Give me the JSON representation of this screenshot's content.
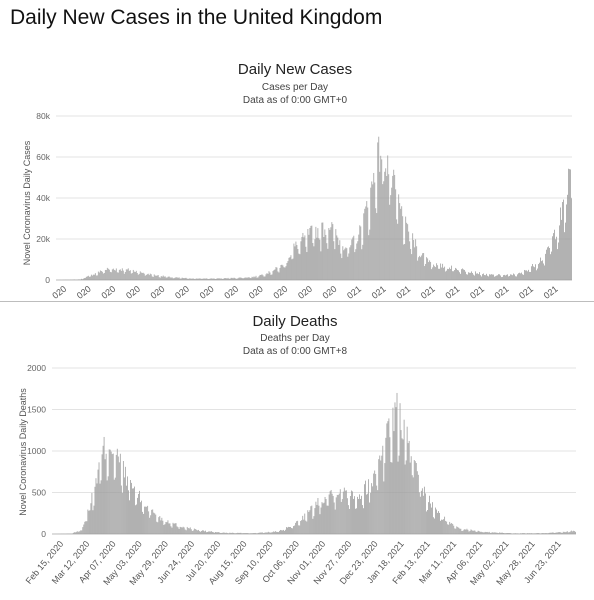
{
  "page": {
    "title": "Daily New Cases in the United Kingdom"
  },
  "colors": {
    "bar": "#9d9d9d",
    "grid": "#e3e3e3",
    "text": "#222222"
  },
  "chart_data": [
    {
      "type": "bar",
      "title": "Daily New Cases",
      "subtitle_1": "Cases per Day",
      "subtitle_2": "Data as of 0:00 GMT+0",
      "xlabel": "",
      "ylabel": "Novel Coronavirus Daily Cases",
      "ylim": [
        0,
        80000
      ],
      "yticks": [
        0,
        20000,
        40000,
        60000,
        80000
      ],
      "ytick_labels": [
        "0",
        "20k",
        "40k",
        "60k",
        "80k"
      ],
      "xtick_labels": [
        "020",
        "020",
        "020",
        "020",
        "020",
        "020",
        "020",
        "020",
        "020",
        "020",
        "020",
        "020",
        "021",
        "021",
        "021",
        "021",
        "021",
        "021",
        "021",
        "021",
        "021"
      ],
      "grid": true,
      "x_start": "2020-02-15",
      "x_end": "2021-07-15",
      "keypoints": [
        [
          "2020-02-15",
          0
        ],
        [
          "2020-03-10",
          300
        ],
        [
          "2020-03-25",
          3000
        ],
        [
          "2020-04-05",
          5000
        ],
        [
          "2020-04-15",
          5200
        ],
        [
          "2020-05-01",
          4500
        ],
        [
          "2020-05-20",
          2500
        ],
        [
          "2020-06-10",
          1200
        ],
        [
          "2020-07-01",
          700
        ],
        [
          "2020-07-25",
          700
        ],
        [
          "2020-08-15",
          1000
        ],
        [
          "2020-09-01",
          1500
        ],
        [
          "2020-09-15",
          3500
        ],
        [
          "2020-09-30",
          7000
        ],
        [
          "2020-10-10",
          15000
        ],
        [
          "2020-10-25",
          21000
        ],
        [
          "2020-11-01",
          23000
        ],
        [
          "2020-11-10",
          24000
        ],
        [
          "2020-11-15",
          26000
        ],
        [
          "2020-11-25",
          18000
        ],
        [
          "2020-12-05",
          15000
        ],
        [
          "2020-12-15",
          22000
        ],
        [
          "2020-12-25",
          38000
        ],
        [
          "2021-01-01",
          55000
        ],
        [
          "2021-01-05",
          60000
        ],
        [
          "2021-01-10",
          58000
        ],
        [
          "2021-01-20",
          40000
        ],
        [
          "2021-02-01",
          22000
        ],
        [
          "2021-02-15",
          12000
        ],
        [
          "2021-03-01",
          7000
        ],
        [
          "2021-03-20",
          5500
        ],
        [
          "2021-04-05",
          4000
        ],
        [
          "2021-04-20",
          2500
        ],
        [
          "2021-05-10",
          2200
        ],
        [
          "2021-05-25",
          3000
        ],
        [
          "2021-06-05",
          6000
        ],
        [
          "2021-06-20",
          12000
        ],
        [
          "2021-06-30",
          24000
        ],
        [
          "2021-07-08",
          34000
        ],
        [
          "2021-07-12",
          45000
        ],
        [
          "2021-07-15",
          53000
        ]
      ]
    },
    {
      "type": "bar",
      "title": "Daily Deaths",
      "subtitle_1": "Deaths per Day",
      "subtitle_2": "Data as of 0:00 GMT+8",
      "xlabel": "",
      "ylabel": "Novel Coronavirus Daily Deaths",
      "ylim": [
        0,
        2000
      ],
      "yticks": [
        0,
        500,
        1000,
        1500,
        2000
      ],
      "ytick_labels": [
        "0",
        "500",
        "1000",
        "1500",
        "2000"
      ],
      "xtick_labels": [
        "Feb 15, 2020",
        "Mar 12, 2020",
        "Apr 07, 2020",
        "May 03, 2020",
        "May 29, 2020",
        "Jun 24, 2020",
        "Jul 20, 2020",
        "Aug 15, 2020",
        "Sep 10, 2020",
        "Oct 06, 2020",
        "Nov 01, 2020",
        "Nov 27, 2020",
        "Dec 23, 2020",
        "Jan 18, 2021",
        "Feb 13, 2021",
        "Mar 11, 2021",
        "Apr 06, 2021",
        "May 02, 2021",
        "May 28, 2021",
        "Jun 23, 2021"
      ],
      "grid": true,
      "x_start": "2020-02-15",
      "x_end": "2021-07-15",
      "keypoints": [
        [
          "2020-02-15",
          0
        ],
        [
          "2020-03-05",
          5
        ],
        [
          "2020-03-15",
          50
        ],
        [
          "2020-03-25",
          400
        ],
        [
          "2020-04-05",
          950
        ],
        [
          "2020-04-12",
          1050
        ],
        [
          "2020-04-20",
          850
        ],
        [
          "2020-05-01",
          600
        ],
        [
          "2020-05-15",
          350
        ],
        [
          "2020-06-01",
          180
        ],
        [
          "2020-06-20",
          90
        ],
        [
          "2020-07-10",
          40
        ],
        [
          "2020-08-01",
          15
        ],
        [
          "2020-09-01",
          10
        ],
        [
          "2020-09-25",
          30
        ],
        [
          "2020-10-10",
          100
        ],
        [
          "2020-10-25",
          250
        ],
        [
          "2020-11-10",
          450
        ],
        [
          "2020-11-25",
          520
        ],
        [
          "2020-12-05",
          480
        ],
        [
          "2020-12-15",
          450
        ],
        [
          "2020-12-28",
          650
        ],
        [
          "2021-01-08",
          1100
        ],
        [
          "2021-01-16",
          1350
        ],
        [
          "2021-01-22",
          1400
        ],
        [
          "2021-02-01",
          1000
        ],
        [
          "2021-02-12",
          550
        ],
        [
          "2021-02-25",
          300
        ],
        [
          "2021-03-10",
          150
        ],
        [
          "2021-03-25",
          60
        ],
        [
          "2021-04-15",
          25
        ],
        [
          "2021-05-15",
          8
        ],
        [
          "2021-06-15",
          10
        ],
        [
          "2021-07-05",
          25
        ],
        [
          "2021-07-15",
          40
        ]
      ]
    }
  ]
}
